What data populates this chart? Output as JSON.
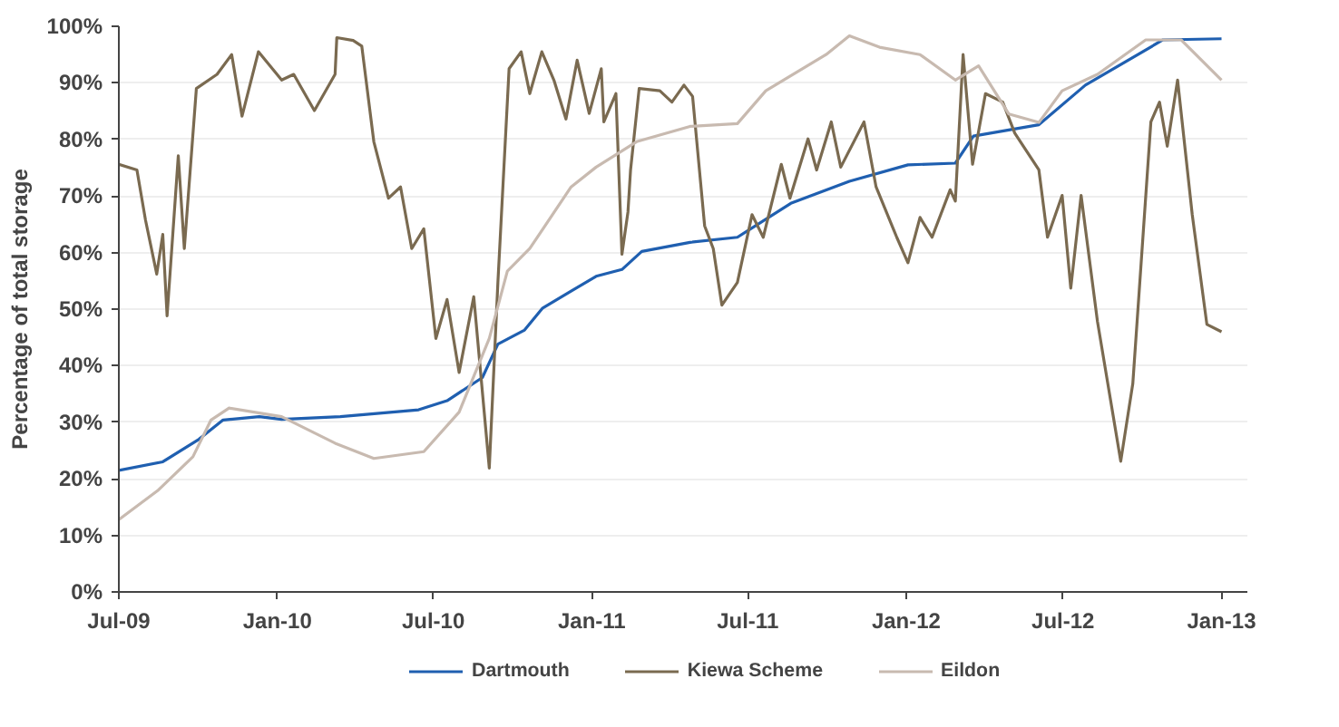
{
  "chart_data": {
    "type": "line",
    "ylabel": "Percentage of total storage",
    "xlim": [
      "2009-07-01",
      "2013-01-31"
    ],
    "xticks": [
      {
        "value": "2009-07-01",
        "label": "Jul-09"
      },
      {
        "value": "2010-01-01",
        "label": "Jan-10"
      },
      {
        "value": "2010-07-01",
        "label": "Jul-10"
      },
      {
        "value": "2011-01-01",
        "label": "Jan-11"
      },
      {
        "value": "2011-07-01",
        "label": "Jul-11"
      },
      {
        "value": "2012-01-01",
        "label": "Jan-12"
      },
      {
        "value": "2012-07-01",
        "label": "Jul-12"
      },
      {
        "value": "2013-01-01",
        "label": "Jan-13"
      }
    ],
    "ylim": [
      0,
      100
    ],
    "yticks": [
      {
        "value": 0,
        "label": "0%"
      },
      {
        "value": 10,
        "label": "10%"
      },
      {
        "value": 20,
        "label": "20%"
      },
      {
        "value": 30,
        "label": "30%"
      },
      {
        "value": 40,
        "label": "40%"
      },
      {
        "value": 50,
        "label": "50%"
      },
      {
        "value": 60,
        "label": "60%"
      },
      {
        "value": 70,
        "label": "70%"
      },
      {
        "value": 80,
        "label": "80%"
      },
      {
        "value": 90,
        "label": "90%"
      },
      {
        "value": 100,
        "label": "100%"
      }
    ],
    "grid": "y",
    "legend": "bottom",
    "marker": "none",
    "line_style": "solid",
    "series": [
      {
        "name": "Dartmouth",
        "color": "#1f5fb0",
        "x": [
          "2009-07-01",
          "2009-08-21",
          "2009-10-02",
          "2009-10-30",
          "2009-12-11",
          "2010-01-06",
          "2010-03-15",
          "2010-06-14",
          "2010-07-17",
          "2010-08-27",
          "2010-09-14",
          "2010-10-15",
          "2010-11-05",
          "2010-12-08",
          "2011-01-06",
          "2011-02-05",
          "2011-02-28",
          "2011-04-25",
          "2011-06-19",
          "2011-08-20",
          "2011-10-27",
          "2012-01-03",
          "2012-02-27",
          "2012-03-19",
          "2012-06-03",
          "2012-07-27",
          "2012-10-25",
          "2013-01-01"
        ],
        "values": [
          21.5,
          23,
          27,
          30.4,
          31,
          30.5,
          31,
          32.2,
          33.8,
          37.9,
          43.8,
          46.3,
          50.2,
          53.2,
          55.8,
          57,
          60.2,
          61.8,
          62.7,
          68.7,
          72.6,
          75.5,
          75.8,
          80.6,
          82.6,
          89.6,
          97.6,
          97.8
        ]
      },
      {
        "name": "Kiewa Scheme",
        "color": "#7a6a50",
        "x": [
          "2009-07-01",
          "2009-07-22",
          "2009-08-01",
          "2009-08-14",
          "2009-08-21",
          "2009-08-26",
          "2009-09-08",
          "2009-09-15",
          "2009-09-29",
          "2009-10-23",
          "2009-11-09",
          "2009-11-21",
          "2009-12-10",
          "2010-01-06",
          "2010-01-20",
          "2010-02-13",
          "2010-03-09",
          "2010-03-11",
          "2010-03-30",
          "2010-04-09",
          "2010-04-23",
          "2010-05-10",
          "2010-05-24",
          "2010-06-06",
          "2010-06-20",
          "2010-07-04",
          "2010-07-17",
          "2010-07-31",
          "2010-08-17",
          "2010-09-04",
          "2010-09-14",
          "2010-09-27",
          "2010-10-11",
          "2010-10-21",
          "2010-11-04",
          "2010-11-18",
          "2010-12-02",
          "2010-12-15",
          "2010-12-29",
          "2011-01-12",
          "2011-01-15",
          "2011-01-29",
          "2011-02-05",
          "2011-02-12",
          "2011-02-15",
          "2011-02-25",
          "2011-03-21",
          "2011-04-04",
          "2011-04-18",
          "2011-04-28",
          "2011-05-12",
          "2011-05-22",
          "2011-06-01",
          "2011-06-19",
          "2011-07-06",
          "2011-07-19",
          "2011-08-09",
          "2011-08-19",
          "2011-09-09",
          "2011-09-19",
          "2011-10-06",
          "2011-10-17",
          "2011-11-13",
          "2011-11-27",
          "2011-12-21",
          "2012-01-03",
          "2012-01-17",
          "2012-01-31",
          "2012-02-21",
          "2012-02-27",
          "2012-03-07",
          "2012-03-18",
          "2012-04-02",
          "2012-04-22",
          "2012-05-06",
          "2012-06-03",
          "2012-06-13",
          "2012-06-30",
          "2012-07-10",
          "2012-07-22",
          "2012-08-10",
          "2012-09-06",
          "2012-09-20",
          "2012-10-11",
          "2012-10-21",
          "2012-10-30",
          "2012-11-11",
          "2012-11-28",
          "2012-12-15",
          "2013-01-01"
        ],
        "values": [
          75.6,
          74.6,
          65.7,
          56.2,
          63.2,
          48.8,
          77.1,
          60.7,
          89.0,
          91.5,
          95.0,
          84.1,
          95.5,
          90.5,
          91.5,
          85.1,
          91.5,
          98.0,
          97.5,
          96.5,
          79.6,
          69.6,
          71.6,
          60.7,
          64.2,
          44.8,
          51.7,
          38.8,
          52.2,
          21.9,
          54.7,
          92.5,
          95.5,
          88.1,
          95.5,
          90.5,
          83.6,
          94.0,
          84.6,
          92.5,
          83.1,
          88.1,
          59.7,
          67.2,
          74.6,
          89.0,
          88.6,
          86.6,
          89.6,
          87.6,
          64.7,
          60.7,
          50.7,
          54.7,
          66.7,
          62.7,
          75.6,
          69.6,
          80.1,
          74.6,
          83.1,
          75.1,
          83.1,
          71.6,
          62.7,
          58.2,
          66.2,
          62.7,
          71.1,
          69.1,
          95.0,
          75.6,
          88.1,
          86.6,
          81.1,
          74.6,
          62.7,
          70.1,
          53.7,
          70.1,
          47.8,
          23.1,
          36.8,
          83.1,
          86.6,
          78.8,
          90.5,
          66.7,
          47.3,
          46.0
        ]
      },
      {
        "name": "Eildon",
        "color": "#c8bab0",
        "x": [
          "2009-07-01",
          "2009-08-15",
          "2009-09-25",
          "2009-10-16",
          "2009-11-06",
          "2010-01-06",
          "2010-03-09",
          "2010-04-23",
          "2010-06-20",
          "2010-07-31",
          "2010-09-04",
          "2010-09-25",
          "2010-10-21",
          "2010-12-08",
          "2011-01-06",
          "2011-02-22",
          "2011-04-25",
          "2011-06-19",
          "2011-07-22",
          "2011-09-30",
          "2011-10-27",
          "2011-12-01",
          "2012-01-17",
          "2012-02-27",
          "2012-03-25",
          "2012-04-29",
          "2012-06-03",
          "2012-06-30",
          "2012-08-10",
          "2012-10-05",
          "2012-11-15",
          "2013-01-01"
        ],
        "values": [
          12.8,
          17.9,
          23.9,
          30.4,
          32.5,
          31,
          26.3,
          23.6,
          24.8,
          31.8,
          44.8,
          56.7,
          60.7,
          71.6,
          75.1,
          79.6,
          82.3,
          82.8,
          88.6,
          95,
          98.3,
          96.3,
          95,
          90.5,
          93,
          84.5,
          83,
          88.6,
          91.5,
          97.6,
          97.6,
          90.5
        ]
      }
    ]
  }
}
